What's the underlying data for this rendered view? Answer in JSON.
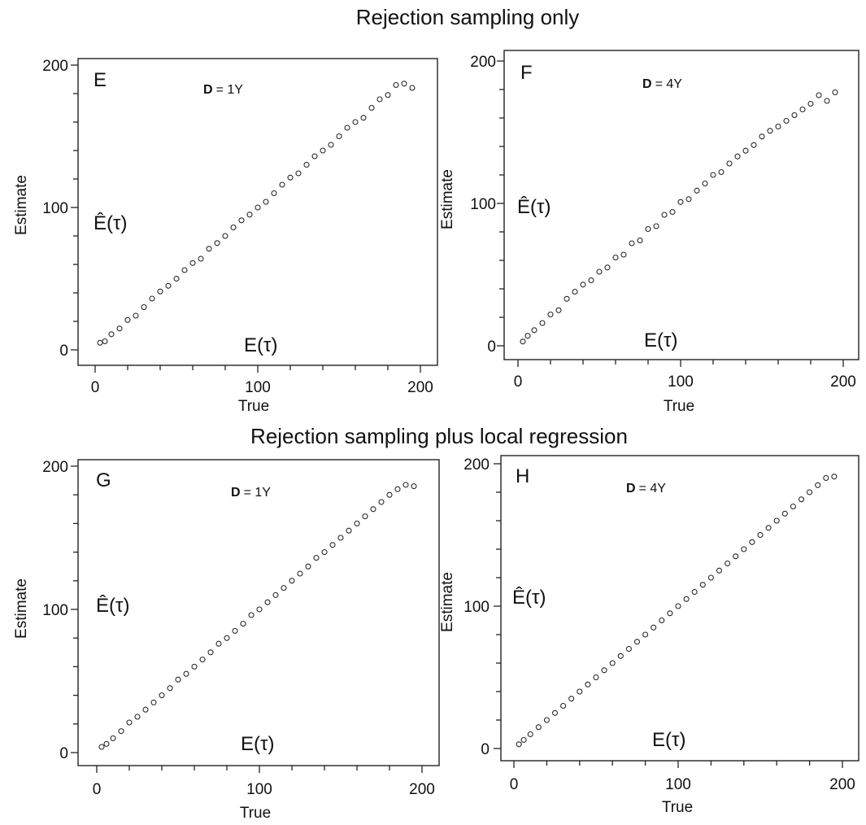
{
  "sections": [
    {
      "title": "Rejection sampling only"
    },
    {
      "title": "Rejection sampling plus local  regression"
    }
  ],
  "chart_data": [
    {
      "type": "scatter",
      "panel": "E",
      "annotation": "= 1Y",
      "annotation_bold": "D",
      "xlabel": "True",
      "ylabel": "Estimate",
      "inner_xlabel": "E(τ)",
      "inner_ylabel": "Ê(τ)",
      "xlim": [
        0,
        200
      ],
      "ylim": [
        0,
        200
      ],
      "xticks": [
        0,
        100,
        200
      ],
      "yticks": [
        0,
        100,
        200
      ],
      "x": [
        3,
        6,
        10,
        15,
        20,
        25,
        30,
        35,
        40,
        45,
        50,
        55,
        60,
        65,
        70,
        75,
        80,
        85,
        90,
        95,
        100,
        105,
        110,
        115,
        120,
        125,
        130,
        135,
        140,
        145,
        150,
        155,
        160,
        165,
        170,
        175,
        180,
        185,
        190,
        195
      ],
      "y": [
        5,
        6,
        11,
        15,
        21,
        24,
        30,
        36,
        41,
        45,
        50,
        56,
        61,
        64,
        71,
        75,
        80,
        86,
        91,
        95,
        100,
        104,
        110,
        116,
        121,
        124,
        130,
        136,
        140,
        144,
        150,
        156,
        160,
        163,
        170,
        176,
        179,
        186,
        187,
        184
      ]
    },
    {
      "type": "scatter",
      "panel": "F",
      "annotation": "= 4Y",
      "annotation_bold": "D",
      "xlabel": "True",
      "ylabel": "Estimate",
      "inner_xlabel": "E(τ)",
      "inner_ylabel": "Ê(τ)",
      "xlim": [
        0,
        200
      ],
      "ylim": [
        0,
        200
      ],
      "xticks": [
        0,
        100,
        200
      ],
      "yticks": [
        0,
        100,
        200
      ],
      "x": [
        3,
        6,
        10,
        15,
        20,
        25,
        30,
        35,
        40,
        45,
        50,
        55,
        60,
        65,
        70,
        75,
        80,
        85,
        90,
        95,
        100,
        105,
        110,
        115,
        120,
        125,
        130,
        135,
        140,
        145,
        150,
        155,
        160,
        165,
        170,
        175,
        180,
        185,
        190,
        195
      ],
      "y": [
        3,
        7,
        11,
        16,
        22,
        25,
        33,
        38,
        43,
        46,
        52,
        55,
        62,
        64,
        72,
        74,
        82,
        84,
        92,
        94,
        101,
        103,
        109,
        114,
        120,
        122,
        128,
        133,
        137,
        141,
        147,
        151,
        154,
        158,
        162,
        166,
        170,
        176,
        172,
        178
      ]
    },
    {
      "type": "scatter",
      "panel": "G",
      "annotation": "= 1Y",
      "annotation_bold": "D",
      "xlabel": "True",
      "ylabel": "Estimate",
      "inner_xlabel": "E(τ)",
      "inner_ylabel": "Ê(τ)",
      "xlim": [
        0,
        200
      ],
      "ylim": [
        0,
        200
      ],
      "xticks": [
        0,
        100,
        200
      ],
      "yticks": [
        0,
        100,
        200
      ],
      "x": [
        3,
        6,
        10,
        15,
        20,
        25,
        30,
        35,
        40,
        45,
        50,
        55,
        60,
        65,
        70,
        75,
        80,
        85,
        90,
        95,
        100,
        105,
        110,
        115,
        120,
        125,
        130,
        135,
        140,
        145,
        150,
        155,
        160,
        165,
        170,
        175,
        180,
        185,
        190,
        195
      ],
      "y": [
        4,
        6,
        10,
        15,
        21,
        25,
        30,
        35,
        40,
        45,
        51,
        55,
        60,
        65,
        70,
        76,
        80,
        85,
        90,
        96,
        100,
        105,
        110,
        115,
        120,
        125,
        130,
        136,
        140,
        145,
        150,
        155,
        160,
        165,
        170,
        175,
        180,
        184,
        187,
        186
      ]
    },
    {
      "type": "scatter",
      "panel": "H",
      "annotation": "= 4Y",
      "annotation_bold": "D",
      "xlabel": "True",
      "ylabel": "Estimate",
      "inner_xlabel": "E(τ)",
      "inner_ylabel": "Ê(τ)",
      "xlim": [
        0,
        200
      ],
      "ylim": [
        0,
        200
      ],
      "xticks": [
        0,
        100,
        200
      ],
      "yticks": [
        0,
        100,
        200
      ],
      "x": [
        3,
        6,
        10,
        15,
        20,
        25,
        30,
        35,
        40,
        45,
        50,
        55,
        60,
        65,
        70,
        75,
        80,
        85,
        90,
        95,
        100,
        105,
        110,
        115,
        120,
        125,
        130,
        135,
        140,
        145,
        150,
        155,
        160,
        165,
        170,
        175,
        180,
        185,
        190,
        195
      ],
      "y": [
        3,
        6,
        10,
        15,
        20,
        25,
        30,
        35,
        40,
        45,
        50,
        55,
        60,
        65,
        70,
        75,
        80,
        85,
        90,
        95,
        100,
        105,
        110,
        115,
        120,
        125,
        130,
        135,
        140,
        145,
        150,
        155,
        160,
        165,
        170,
        175,
        180,
        185,
        190,
        191
      ]
    }
  ]
}
